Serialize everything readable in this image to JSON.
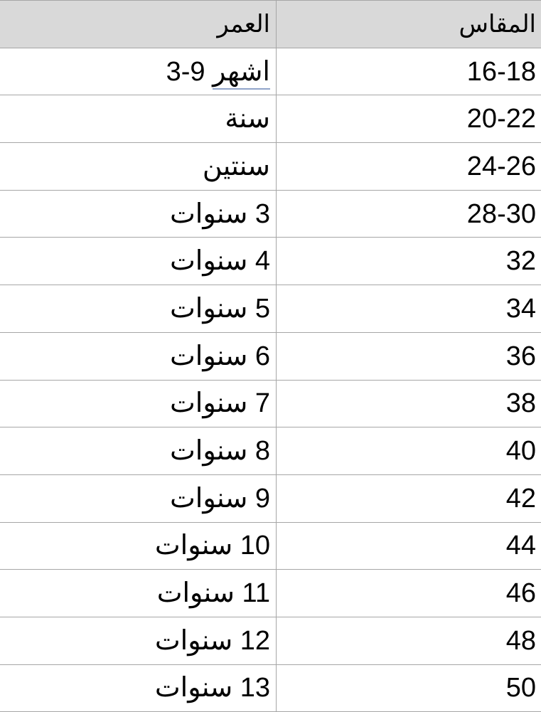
{
  "table": {
    "headers": {
      "age": "العمر",
      "size": "المقاس"
    },
    "rows": [
      {
        "age_num": "9-3",
        "age_unit": "اشهر",
        "size": "16-18"
      },
      {
        "age": "سنة",
        "size": "20-22"
      },
      {
        "age": "سنتين",
        "size": "24-26"
      },
      {
        "age": "3 سنوات",
        "size": "28-30"
      },
      {
        "age": "4 سنوات",
        "size": "32"
      },
      {
        "age": "5 سنوات",
        "size": "34"
      },
      {
        "age": "6 سنوات",
        "size": "36"
      },
      {
        "age": "7 سنوات",
        "size": "38"
      },
      {
        "age": "8 سنوات",
        "size": "40"
      },
      {
        "age": "9 سنوات",
        "size": "42"
      },
      {
        "age": "10 سنوات",
        "size": "44"
      },
      {
        "age": "11 سنوات",
        "size": "46"
      },
      {
        "age": "12 سنوات",
        "size": "48"
      },
      {
        "age": "13 سنوات",
        "size": "50"
      }
    ]
  },
  "colors": {
    "header_bg": "#d9d9d9",
    "border": "#a6a6a6",
    "spellcheck_underline": "#8fa3c9"
  }
}
